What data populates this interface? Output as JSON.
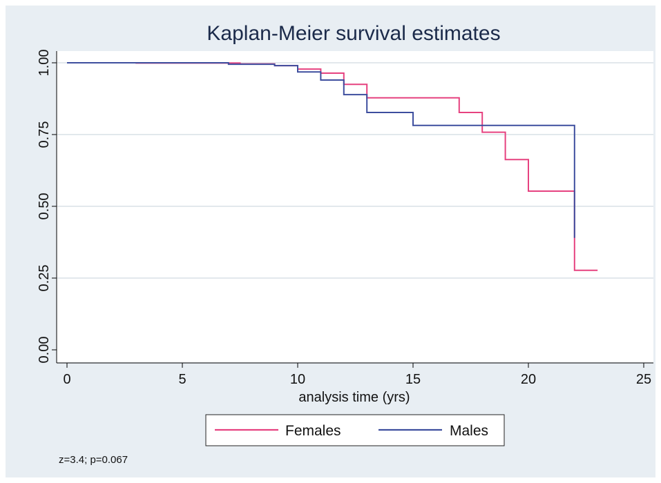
{
  "chart_data": {
    "type": "line",
    "step": true,
    "title": "Kaplan-Meier survival estimates",
    "xlabel": "analysis time (yrs)",
    "ylabel": "",
    "xlim": [
      0,
      25
    ],
    "ylim": [
      0,
      1
    ],
    "xticks": [
      "0",
      "5",
      "10",
      "15",
      "20",
      "25"
    ],
    "yticks": [
      "0.00",
      "0.25",
      "0.50",
      "0.75",
      "1.00"
    ],
    "grid": true,
    "legend_position": "bottom",
    "series": [
      {
        "name": "Females",
        "color": "#e6417f",
        "points": [
          [
            0,
            1.0
          ],
          [
            3,
            1.0
          ],
          [
            3,
            0.999
          ],
          [
            7.5,
            0.999
          ],
          [
            7.5,
            0.996
          ],
          [
            9,
            0.996
          ],
          [
            9,
            0.99
          ],
          [
            10,
            0.99
          ],
          [
            10,
            0.978
          ],
          [
            11,
            0.978
          ],
          [
            11,
            0.964
          ],
          [
            12,
            0.964
          ],
          [
            12,
            0.925
          ],
          [
            13,
            0.925
          ],
          [
            13,
            0.878
          ],
          [
            17,
            0.878
          ],
          [
            17,
            0.827
          ],
          [
            18,
            0.827
          ],
          [
            18,
            0.758
          ],
          [
            19,
            0.758
          ],
          [
            19,
            0.663
          ],
          [
            20,
            0.663
          ],
          [
            20,
            0.553
          ],
          [
            22,
            0.553
          ],
          [
            22,
            0.277
          ],
          [
            23,
            0.277
          ]
        ]
      },
      {
        "name": "Males",
        "color": "#3d4e9e",
        "points": [
          [
            0,
            1.0
          ],
          [
            7,
            1.0
          ],
          [
            7,
            0.995
          ],
          [
            9,
            0.995
          ],
          [
            9,
            0.99
          ],
          [
            10,
            0.99
          ],
          [
            10,
            0.968
          ],
          [
            11,
            0.968
          ],
          [
            11,
            0.94
          ],
          [
            12,
            0.94
          ],
          [
            12,
            0.889
          ],
          [
            13,
            0.889
          ],
          [
            13,
            0.827
          ],
          [
            15,
            0.827
          ],
          [
            15,
            0.782
          ],
          [
            22,
            0.782
          ],
          [
            22,
            0.39
          ]
        ]
      }
    ],
    "annotation": "z=3.4; p=0.067"
  },
  "colors": {
    "outer_background": "#e8eef3",
    "plot_background": "#ffffff",
    "grid": "#e2e8ec",
    "title": "#1b2a4a"
  }
}
